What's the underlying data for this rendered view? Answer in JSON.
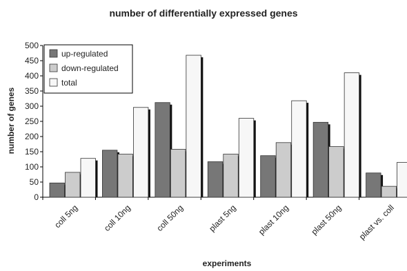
{
  "chart_data": {
    "type": "bar",
    "title": "number of differentially expressed genes",
    "xlabel": "experiments",
    "ylabel": "number of genes",
    "ylim": [
      0,
      500
    ],
    "yticks": [
      0,
      50,
      100,
      150,
      200,
      250,
      300,
      350,
      400,
      450,
      500
    ],
    "categories": [
      "coll 5ng",
      "coll 10ng",
      "coll 50ng",
      "plast 5ng",
      "plast 10ng",
      "plast 50ng",
      "plast vs. coll"
    ],
    "series": [
      {
        "name": "up-regulated",
        "color": "#777777",
        "values": [
          47,
          155,
          312,
          117,
          137,
          247,
          80
        ]
      },
      {
        "name": "down-regulated",
        "color": "#cccccc",
        "values": [
          82,
          142,
          158,
          142,
          180,
          167,
          36
        ]
      },
      {
        "name": "total",
        "color": "#f7f7f7",
        "values": [
          128,
          296,
          468,
          260,
          318,
          410,
          115
        ]
      }
    ],
    "grid": false,
    "legend": "top-left"
  }
}
